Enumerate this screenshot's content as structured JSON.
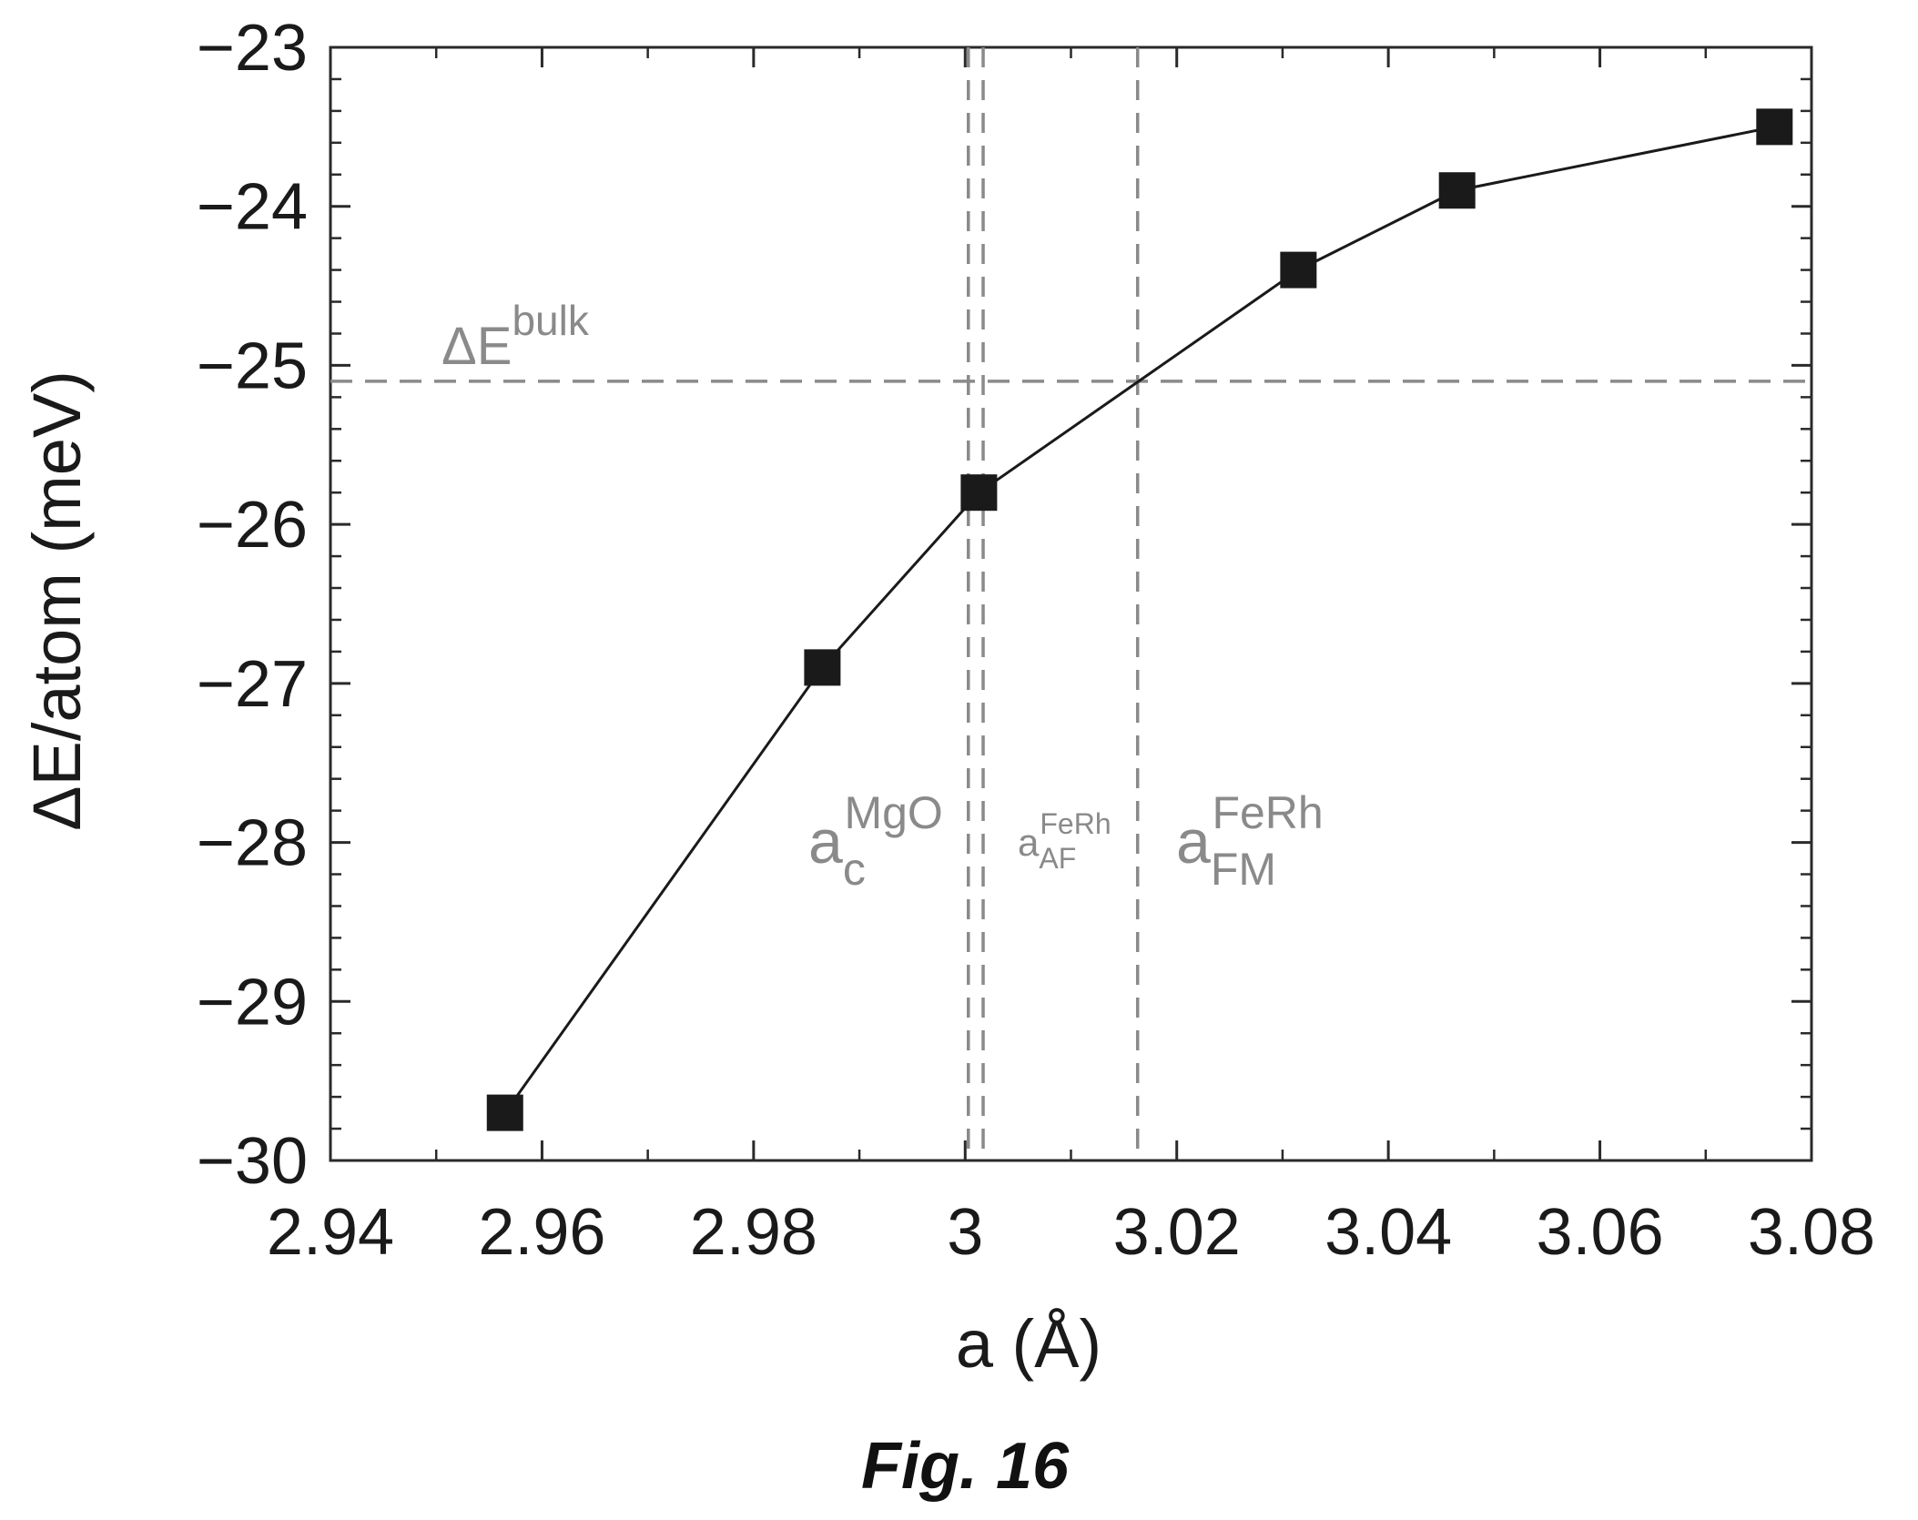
{
  "chart_data": {
    "type": "line",
    "title": "",
    "xlabel": "a (Å)",
    "ylabel": "ΔE/atom (meV)",
    "xlim": [
      2.94,
      3.08
    ],
    "ylim": [
      -30,
      -23
    ],
    "xticks": [
      2.94,
      2.96,
      2.98,
      3.0,
      3.02,
      3.04,
      3.06,
      3.08
    ],
    "xtick_labels": [
      "2.94",
      "2.96",
      "2.98",
      "3",
      "3.02",
      "3.04",
      "3.06",
      "3.08"
    ],
    "yticks": [
      -30,
      -29,
      -28,
      -27,
      -26,
      -25,
      -24,
      -23
    ],
    "ytick_labels": [
      "−30",
      "−29",
      "−28",
      "−27",
      "−26",
      "−25",
      "−24",
      "−23"
    ],
    "grid": false,
    "series": [
      {
        "marker": "square",
        "color": "#1a1a1a",
        "x": [
          2.9565,
          2.9865,
          3.0013,
          3.0315,
          3.0465,
          3.0765
        ],
        "y": [
          -29.7,
          -26.9,
          -25.8,
          -24.4,
          -23.9,
          -23.5
        ]
      }
    ],
    "reference_lines": [
      {
        "orientation": "horizontal",
        "value": -25.1,
        "style": "dashed",
        "label_base": "ΔE",
        "label_sup": "bulk",
        "label_sub": ""
      },
      {
        "orientation": "vertical",
        "value": 3.0003,
        "style": "dashed",
        "label_base": "a",
        "label_sup": "MgO",
        "label_sub": "c"
      },
      {
        "orientation": "vertical",
        "value": 3.0017,
        "style": "dashed",
        "label_base": "a",
        "label_sup": "FeRh",
        "label_sub": "AF"
      },
      {
        "orientation": "vertical",
        "value": 3.0163,
        "style": "dashed",
        "label_base": "a",
        "label_sup": "FeRh",
        "label_sub": "FM"
      }
    ],
    "colors": {
      "data": "#1a1a1a",
      "reference": "#8a8a8a",
      "frame": "#2a2a2a"
    }
  },
  "figure": {
    "caption": "Fig. 16"
  }
}
